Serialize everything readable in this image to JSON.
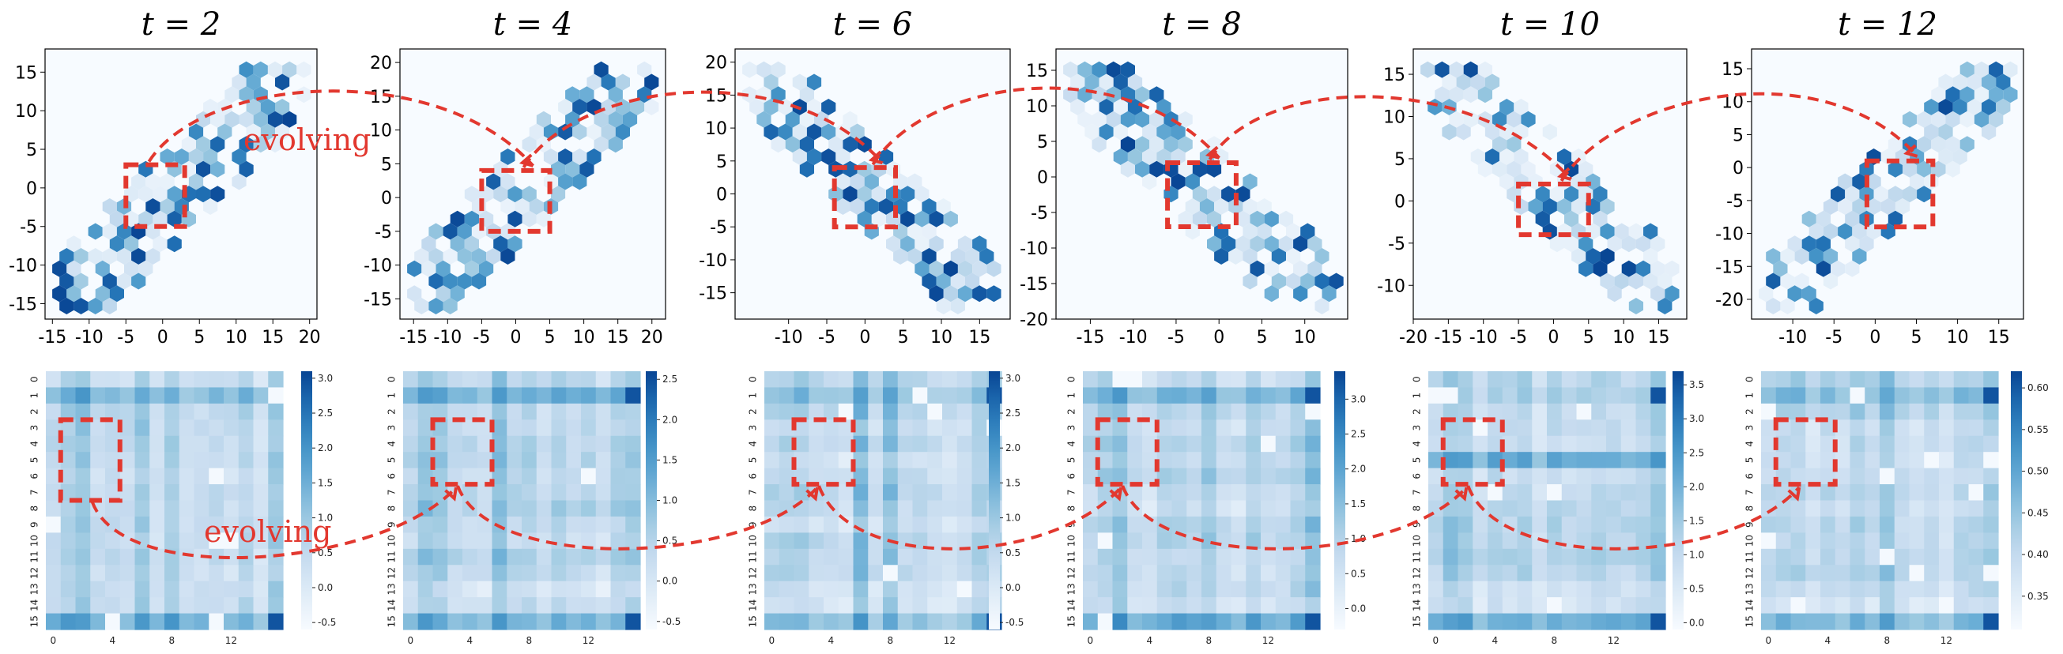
{
  "figure": {
    "annotation_top": "evolving",
    "annotation_bottom": "evolving",
    "accent_color": "#e2382f",
    "colormap": "Blues"
  },
  "chart_data": [
    {
      "type": "hexbin",
      "title": "t = 2",
      "xticks": [
        -15,
        -10,
        -5,
        0,
        5,
        10,
        15,
        20
      ],
      "yticks": [
        -15,
        -10,
        -5,
        0,
        5,
        10,
        15
      ],
      "xlim": [
        -16,
        21
      ],
      "ylim": [
        -17,
        18
      ]
    },
    {
      "type": "hexbin",
      "title": "t = 4",
      "xticks": [
        -15,
        -10,
        -5,
        0,
        5,
        10,
        15,
        20
      ],
      "yticks": [
        -15,
        -10,
        -5,
        0,
        5,
        10,
        15,
        20
      ],
      "xlim": [
        -17,
        22
      ],
      "ylim": [
        -18,
        22
      ]
    },
    {
      "type": "hexbin",
      "title": "t = 6",
      "xticks": [
        -10,
        -5,
        0,
        5,
        10,
        15
      ],
      "yticks": [
        -15,
        -10,
        -5,
        0,
        5,
        10,
        15,
        20
      ],
      "xlim": [
        -17,
        19
      ],
      "ylim": [
        -19,
        22
      ]
    },
    {
      "type": "hexbin",
      "title": "t = 8",
      "xticks": [
        -15,
        -10,
        -5,
        0,
        5,
        10
      ],
      "yticks": [
        -20,
        -15,
        -10,
        -5,
        0,
        5,
        10,
        15
      ],
      "xlim": [
        -19,
        15
      ],
      "ylim": [
        -20,
        18
      ]
    },
    {
      "type": "hexbin",
      "title": "t = 10",
      "xticks": [
        -20,
        -15,
        -10,
        -5,
        0,
        5,
        10,
        15
      ],
      "yticks": [
        -10,
        -5,
        0,
        5,
        10,
        15
      ],
      "xlim": [
        -20,
        19
      ],
      "ylim": [
        -14,
        18
      ]
    },
    {
      "type": "hexbin",
      "title": "t = 12",
      "xticks": [
        -10,
        -5,
        0,
        5,
        10,
        15
      ],
      "yticks": [
        -20,
        -15,
        -10,
        -5,
        0,
        5,
        10,
        15
      ],
      "xlim": [
        -15,
        18
      ],
      "ylim": [
        -23,
        18
      ]
    },
    {
      "type": "heatmap",
      "row_ticks": [
        "0",
        "1",
        "2",
        "3",
        "4",
        "5",
        "6",
        "7",
        "8",
        "9",
        "10",
        "11",
        "12",
        "13",
        "14",
        "15"
      ],
      "col_ticks": [
        "0",
        "4",
        "8",
        "12"
      ],
      "colorbar_ticks": [
        "3.0",
        "2.5",
        "2.0",
        "1.5",
        "1.0",
        "0.5",
        "0.0",
        "-0.5"
      ],
      "vmin": -0.6,
      "vmax": 3.1
    },
    {
      "type": "heatmap",
      "row_ticks": [
        "0",
        "1",
        "2",
        "3",
        "4",
        "5",
        "6",
        "7",
        "8",
        "9",
        "10",
        "11",
        "12",
        "13",
        "14",
        "15"
      ],
      "col_ticks": [
        "0",
        "4",
        "8",
        "12"
      ],
      "colorbar_ticks": [
        "2.5",
        "2.0",
        "1.5",
        "1.0",
        "0.5",
        "0.0",
        "-0.5"
      ],
      "vmin": -0.6,
      "vmax": 2.6
    },
    {
      "type": "heatmap",
      "row_ticks": [
        "0",
        "1",
        "2",
        "3",
        "4",
        "5",
        "6",
        "7",
        "8",
        "9",
        "10",
        "11",
        "12",
        "13",
        "14",
        "15"
      ],
      "col_ticks": [
        "0",
        "4",
        "8",
        "12"
      ],
      "colorbar_ticks": [
        "3.0",
        "2.5",
        "2.0",
        "1.5",
        "1.0",
        "0.5",
        "0.0",
        "-0.5"
      ],
      "vmin": -0.6,
      "vmax": 3.1
    },
    {
      "type": "heatmap",
      "row_ticks": [
        "0",
        "1",
        "2",
        "3",
        "4",
        "5",
        "6",
        "7",
        "8",
        "9",
        "10",
        "11",
        "12",
        "13",
        "14",
        "15"
      ],
      "col_ticks": [
        "0",
        "4",
        "8",
        "12"
      ],
      "colorbar_ticks": [
        "3.0",
        "2.5",
        "2.0",
        "1.5",
        "1.0",
        "0.5",
        "0.0"
      ],
      "vmin": -0.3,
      "vmax": 3.4
    },
    {
      "type": "heatmap",
      "row_ticks": [
        "0",
        "1",
        "2",
        "3",
        "4",
        "5",
        "6",
        "7",
        "8",
        "9",
        "10",
        "11",
        "12",
        "13",
        "14",
        "15"
      ],
      "col_ticks": [
        "0",
        "4",
        "8",
        "12"
      ],
      "colorbar_ticks": [
        "3.5",
        "3.0",
        "2.5",
        "2.0",
        "1.5",
        "1.0",
        "0.5",
        "0.0"
      ],
      "vmin": -0.1,
      "vmax": 3.7
    },
    {
      "type": "heatmap",
      "row_ticks": [
        "0",
        "1",
        "2",
        "3",
        "4",
        "5",
        "6",
        "7",
        "8",
        "9",
        "10",
        "11",
        "12",
        "13",
        "14",
        "15"
      ],
      "col_ticks": [
        "0",
        "4",
        "8",
        "12"
      ],
      "colorbar_ticks": [
        "0.60",
        "0.55",
        "0.50",
        "0.45",
        "0.40",
        "0.35"
      ],
      "vmin": 0.31,
      "vmax": 0.62
    }
  ]
}
